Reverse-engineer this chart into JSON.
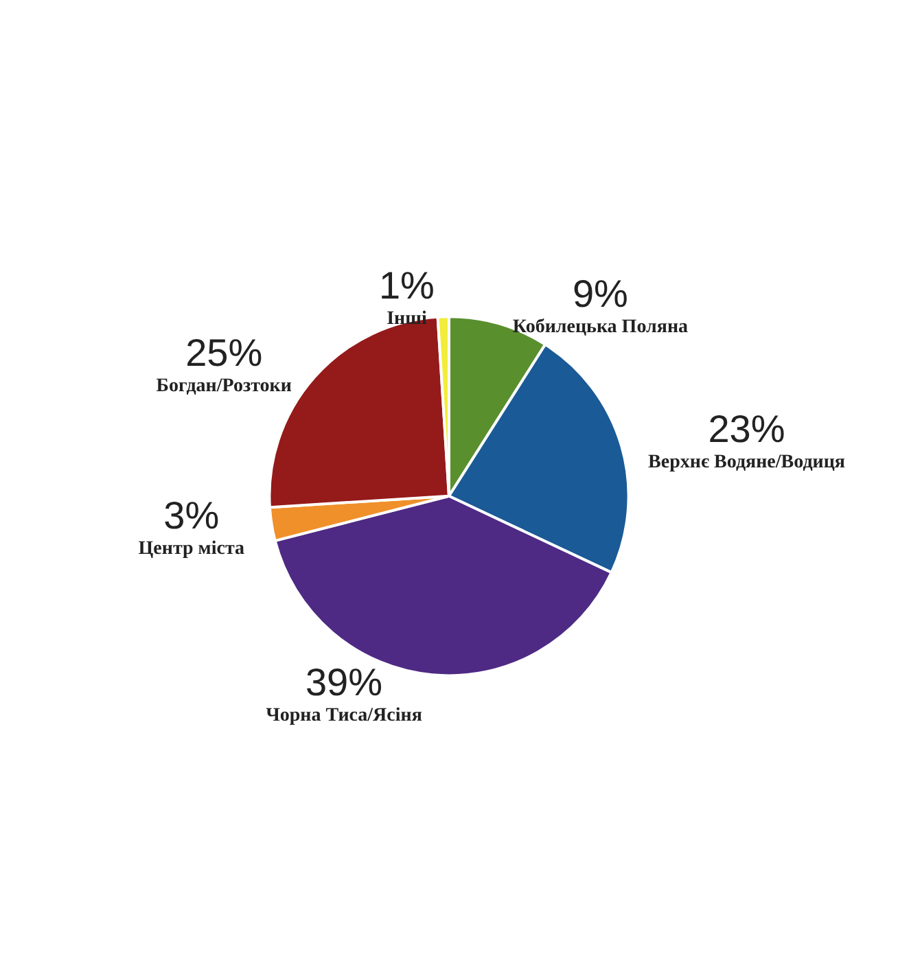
{
  "chart_data": {
    "type": "pie",
    "categories": [
      "Кобилецька Поляна",
      "Верхнє Водяне/Водиця",
      "Чорна Тиса/Ясіня",
      "Центр міста",
      "Богдан/Розтоки",
      "Інші"
    ],
    "values": [
      9,
      23,
      39,
      3,
      25,
      1
    ],
    "value_labels": [
      "9%",
      "23%",
      "39%",
      "3%",
      "25%",
      "1%"
    ],
    "colors": [
      "#5a8f2e",
      "#1a5a96",
      "#4e2a84",
      "#f0902a",
      "#951a1a",
      "#f2ec3a"
    ],
    "legend": false
  }
}
